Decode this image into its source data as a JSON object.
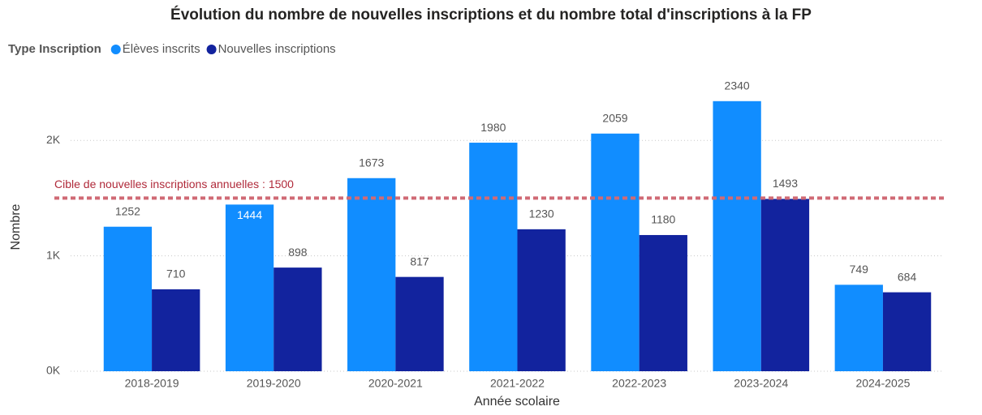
{
  "chart_data": {
    "type": "bar",
    "title": "Évolution du nombre de nouvelles inscriptions et du nombre total d'inscriptions à la FP",
    "legend_title": "Type Inscription",
    "legend_position": "top-left",
    "x_label": "Année scolaire",
    "y_label": "Nombre",
    "categories": [
      "2018-2019",
      "2019-2020",
      "2020-2021",
      "2021-2022",
      "2022-2023",
      "2023-2024",
      "2024-2025"
    ],
    "series": [
      {
        "name": "Élèves inscrits",
        "color": "#118dff",
        "values": [
          1252,
          1444,
          1673,
          1980,
          2059,
          2340,
          749
        ]
      },
      {
        "name": "Nouvelles inscriptions",
        "color": "#12239e",
        "values": [
          710,
          898,
          817,
          1230,
          1180,
          1493,
          684
        ]
      }
    ],
    "reference_line": {
      "value": 1500,
      "label": "Cible de nouvelles inscriptions annuelles : 1500",
      "color": "#d06a75"
    },
    "ylim": [
      0,
      2500
    ],
    "yticks": [
      {
        "value": 0,
        "label": "0K"
      },
      {
        "value": 1000,
        "label": "1K"
      },
      {
        "value": 2000,
        "label": "2K"
      }
    ],
    "grid": true
  }
}
